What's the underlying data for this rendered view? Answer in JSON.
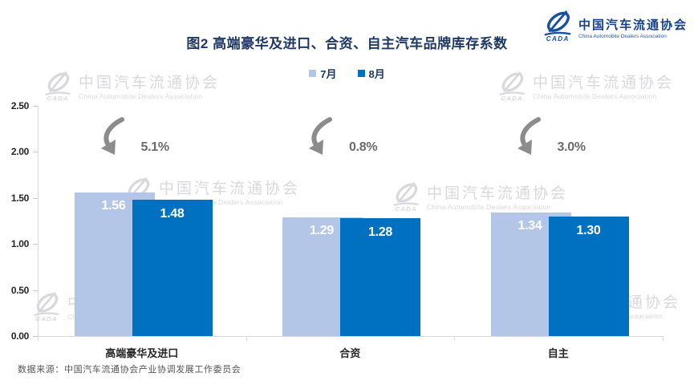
{
  "header": {
    "title": "图2  高端豪华及进口、合资、自主汽车品牌库存系数",
    "brand": {
      "name": "中国汽车流通协会",
      "subtitle": "China Automobile Dealers Association",
      "logo_monogram": "CADA"
    }
  },
  "watermark": {
    "name": "中国汽车流通协会",
    "subtitle": "China Automobile Dealers Association"
  },
  "footer": {
    "source": "数据来源：中国汽车流通协会产业协调发展工作委员会"
  },
  "colors": {
    "series_july": "#b4c6e7",
    "series_august": "#0070c0",
    "title": "#1f3864",
    "arrow": "#8c8c8c",
    "percent_text": "#6b6b6b"
  },
  "chart_data": {
    "type": "bar",
    "title": "图2  高端豪华及进口、合资、自主汽车品牌库存系数",
    "categories": [
      "高端豪华及进口",
      "合资",
      "自主"
    ],
    "series": [
      {
        "name": "7月",
        "color": "#b4c6e7",
        "values": [
          1.56,
          1.29,
          1.34
        ]
      },
      {
        "name": "8月",
        "color": "#0070c0",
        "values": [
          1.48,
          1.28,
          1.3
        ]
      }
    ],
    "annotations": [
      {
        "category": "高端豪华及进口",
        "text": "5.1%",
        "meaning": "decline-arrow"
      },
      {
        "category": "合资",
        "text": "0.8%",
        "meaning": "decline-arrow"
      },
      {
        "category": "自主",
        "text": "3.0%",
        "meaning": "decline-arrow"
      }
    ],
    "xlabel": "",
    "ylabel": "",
    "ylim": [
      0,
      2.5
    ],
    "yticks": [
      "0.00",
      "0.50",
      "1.00",
      "1.50",
      "2.00",
      "2.50"
    ],
    "grid": false,
    "legend_position": "top"
  }
}
